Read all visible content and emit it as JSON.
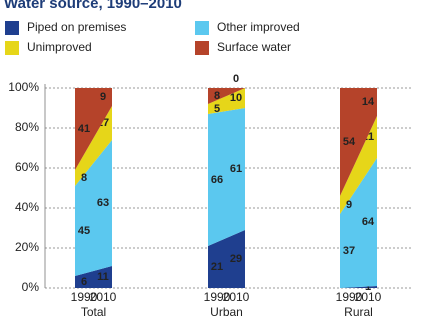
{
  "chart_data": {
    "type": "stacked-area-bar",
    "title": "Water source, 1990–2010",
    "groups": [
      "Total",
      "Urban",
      "Rural"
    ],
    "categories": [
      "1990",
      "2010",
      "1990",
      "2010",
      "1990",
      "2010"
    ],
    "series": [
      {
        "name": "Piped on premises",
        "color": "#1f3f8f",
        "values": [
          6,
          11,
          21,
          29,
          0,
          1
        ]
      },
      {
        "name": "Other improved",
        "color": "#5bc8ef",
        "values": [
          45,
          63,
          66,
          61,
          37,
          64
        ]
      },
      {
        "name": "Unimproved",
        "color": "#e6d619",
        "values": [
          8,
          17,
          5,
          10,
          9,
          21
        ]
      },
      {
        "name": "Surface water",
        "color": "#b5432a",
        "values": [
          41,
          9,
          8,
          0,
          54,
          14
        ]
      }
    ],
    "ylim": [
      0,
      100
    ],
    "yticks": [
      {
        "value": 0,
        "label": "0%"
      },
      {
        "value": 20,
        "label": "20%"
      },
      {
        "value": 40,
        "label": "40%"
      },
      {
        "value": 60,
        "label": "60%"
      },
      {
        "value": 80,
        "label": "80%"
      },
      {
        "value": 100,
        "label": "100%"
      }
    ],
    "grid": true
  }
}
